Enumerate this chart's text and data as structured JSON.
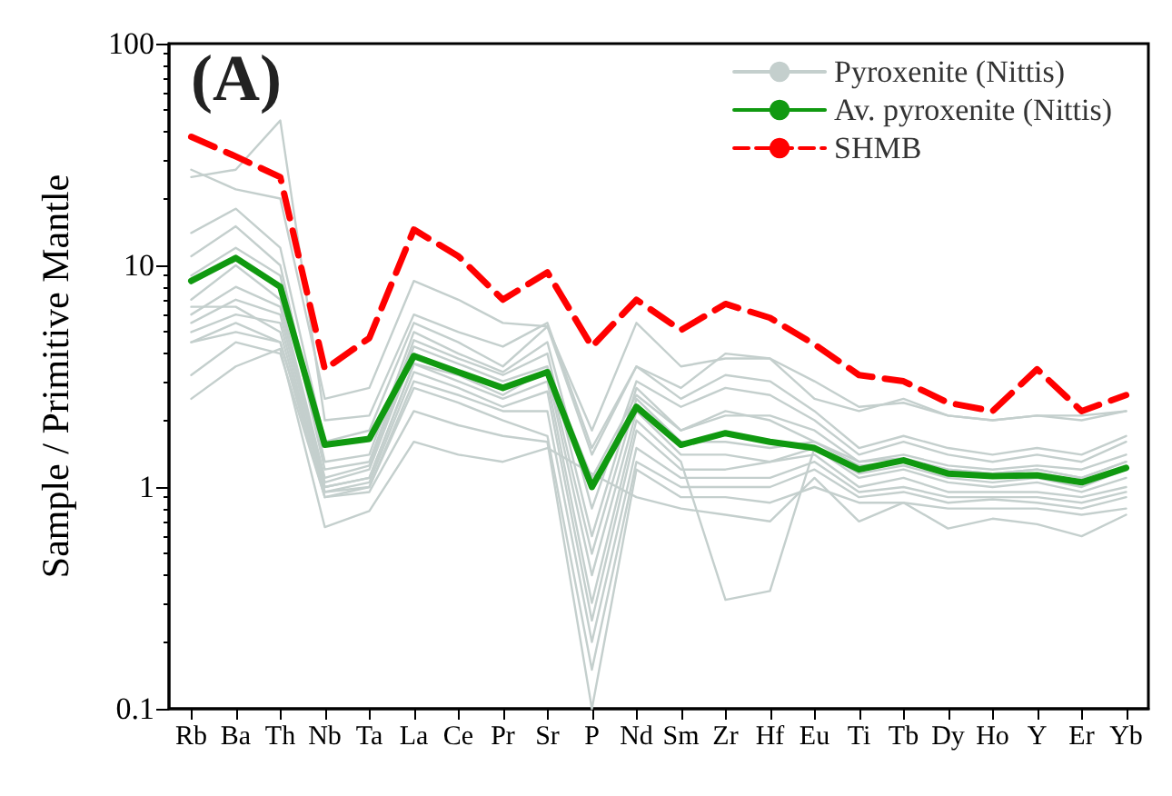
{
  "chart_data": {
    "type": "line",
    "title": "(A)",
    "ylabel": "Sample / Primitive Mantle",
    "categories": [
      "Rb",
      "Ba",
      "Th",
      "Nb",
      "Ta",
      "La",
      "Ce",
      "Pr",
      "Sr",
      "P",
      "Nd",
      "Sm",
      "Zr",
      "Hf",
      "Eu",
      "Ti",
      "Tb",
      "Dy",
      "Ho",
      "Y",
      "Er",
      "Yb"
    ],
    "log": true,
    "ylim": [
      0.1,
      100
    ],
    "yticks": [
      0.1,
      1,
      10,
      100
    ],
    "grid": false,
    "legend": "top right",
    "marker": "none",
    "series": [
      {
        "name": "Pyroxenite (Nittis)",
        "color": "#c4cfcd",
        "values": [
          25,
          27,
          45,
          2.0,
          2.1,
          6,
          5,
          4.3,
          5.5,
          1.5,
          3.5,
          2.8,
          4,
          3.8,
          2.5,
          2.2,
          2.5,
          2.1,
          2.0,
          2.1,
          2.0,
          2.2
        ]
      },
      {
        "color": "#c4cfcd",
        "values": [
          27,
          22,
          20,
          2.5,
          2.8,
          8.5,
          7,
          5.5,
          5.3,
          1.8,
          5.5,
          3.5,
          3.8,
          3.8,
          3.0,
          2.3,
          2.4,
          2.1,
          2.0,
          2.1,
          2.1,
          2.2
        ]
      },
      {
        "color": "#c4cfcd",
        "values": [
          14,
          18,
          12,
          1.6,
          1.8,
          5.5,
          4.5,
          3.5,
          5.3,
          1.4,
          3.5,
          2.5,
          3.2,
          3.0,
          2.2,
          1.5,
          1.7,
          1.5,
          1.4,
          1.5,
          1.4,
          1.7
        ]
      },
      {
        "color": "#c4cfcd",
        "values": [
          11,
          15,
          10,
          1.3,
          1.4,
          5,
          4,
          3.3,
          4.5,
          0.8,
          3,
          2.3,
          2.8,
          2.6,
          2.0,
          1.4,
          1.6,
          1.4,
          1.3,
          1.4,
          1.3,
          1.6
        ]
      },
      {
        "color": "#c4cfcd",
        "values": [
          9,
          12,
          9,
          1.2,
          1.3,
          4.6,
          3.8,
          3.2,
          4,
          0.6,
          2.8,
          1.8,
          2.2,
          2.0,
          1.6,
          1.3,
          1.4,
          1.25,
          1.2,
          1.25,
          1.2,
          1.4
        ]
      },
      {
        "color": "#c4cfcd",
        "values": [
          7,
          10,
          7,
          1.1,
          1.25,
          4.3,
          3.6,
          3.0,
          3.5,
          0.5,
          2.5,
          1.6,
          1.6,
          1.5,
          1.6,
          1.25,
          1.3,
          1.2,
          1.15,
          1.2,
          1.1,
          1.3
        ]
      },
      {
        "color": "#c4cfcd",
        "values": [
          6,
          8,
          6.5,
          1.05,
          1.2,
          4,
          3.3,
          2.8,
          3.3,
          0.4,
          2.2,
          1.4,
          1.4,
          1.3,
          1.5,
          1.15,
          1.25,
          1.1,
          1.05,
          1.1,
          1.0,
          1.2
        ]
      },
      {
        "color": "#c4cfcd",
        "values": [
          5.5,
          7,
          6,
          1.0,
          1.1,
          3.6,
          3.0,
          2.5,
          3.0,
          0.3,
          2.0,
          1.3,
          0.31,
          0.34,
          1.5,
          1.1,
          1.2,
          1.05,
          1.0,
          1.05,
          0.95,
          1.1
        ]
      },
      {
        "color": "#c4cfcd",
        "values": [
          5,
          6,
          5.5,
          0.95,
          1.05,
          3.3,
          2.8,
          2.3,
          2.7,
          0.25,
          1.8,
          1.2,
          1.2,
          1.3,
          1.4,
          1.0,
          1.1,
          0.95,
          0.95,
          0.95,
          0.9,
          1.0
        ]
      },
      {
        "color": "#c4cfcd",
        "values": [
          6.5,
          6.5,
          5,
          0.95,
          1.0,
          3.0,
          2.6,
          2.2,
          2.2,
          0.2,
          1.5,
          1.1,
          1.1,
          1.1,
          1.3,
          0.95,
          1.0,
          0.9,
          0.9,
          0.9,
          0.85,
          0.95
        ]
      },
      {
        "color": "#c4cfcd",
        "values": [
          4.5,
          5,
          4.5,
          0.9,
          1.0,
          2.8,
          2.4,
          2.0,
          1.7,
          0.15,
          1.3,
          1.0,
          1.0,
          1.0,
          1.2,
          0.9,
          0.95,
          0.85,
          0.88,
          0.85,
          0.8,
          0.9
        ]
      },
      {
        "color": "#c4cfcd",
        "values": [
          3.2,
          4.5,
          4,
          0.9,
          0.95,
          2.2,
          1.9,
          1.7,
          1.6,
          0.1,
          1.2,
          0.9,
          0.9,
          0.85,
          1.0,
          0.85,
          0.85,
          0.8,
          0.8,
          0.8,
          0.75,
          0.8
        ]
      },
      {
        "color": "#c4cfcd",
        "values": [
          2.5,
          3.5,
          4.2,
          0.66,
          0.78,
          1.6,
          1.4,
          1.3,
          1.5,
          1.15,
          0.9,
          0.8,
          0.75,
          0.7,
          1.1,
          0.7,
          0.85,
          0.65,
          0.72,
          0.68,
          0.6,
          0.75
        ]
      },
      {
        "color": "#c4cfcd",
        "values": [
          4.5,
          5.5,
          4.5,
          1.0,
          1.1,
          3.6,
          3.2,
          2.6,
          3.4,
          1.1,
          2.6,
          1.8,
          2.1,
          2.1,
          1.8,
          1.3,
          1.35,
          1.2,
          1.15,
          1.2,
          1.1,
          1.3
        ]
      },
      {
        "name": "Av. pyroxenite (Nittis)",
        "color": "#109910",
        "values": [
          8.5,
          10.8,
          8,
          1.55,
          1.65,
          3.9,
          3.3,
          2.8,
          3.3,
          1.0,
          2.3,
          1.55,
          1.75,
          1.6,
          1.5,
          1.2,
          1.32,
          1.15,
          1.12,
          1.13,
          1.05,
          1.22
        ]
      },
      {
        "name": "SHMB",
        "color": "#ff0000",
        "line_style": "dashed",
        "values": [
          38,
          31,
          25,
          3.4,
          4.7,
          14.5,
          11,
          7,
          9.3,
          4.3,
          7,
          5.1,
          6.7,
          5.8,
          4.4,
          3.2,
          3.0,
          2.4,
          2.2,
          3.4,
          2.2,
          2.6
        ]
      }
    ]
  }
}
